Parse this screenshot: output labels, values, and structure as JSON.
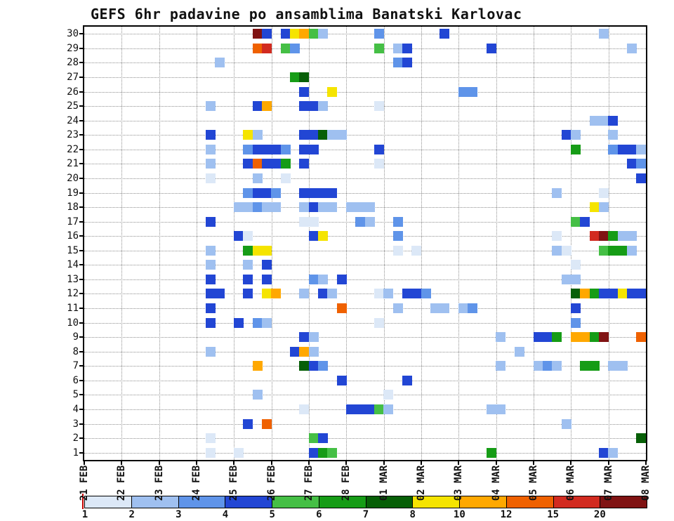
{
  "title": "GEFS 6hr padavine po ansamblima Banatski Karlovac",
  "chart_data": {
    "type": "heatmap",
    "title": "GEFS 6hr padavine po ansamblima Banatski Karlovac",
    "x_axis": {
      "tick_labels": [
        "21 FEB",
        "22 FEB",
        "23 FEB",
        "24 FEB",
        "25 FEB",
        "26 FEB",
        "27 FEB",
        "28 FEB",
        "01 MAR",
        "02 MAR",
        "03 MAR",
        "04 MAR",
        "05 MAR",
        "06 MAR",
        "07 MAR",
        "08 MAR"
      ],
      "total_steps": 60,
      "step_hours": 6
    },
    "y_axis": {
      "tick_values": [
        1,
        2,
        3,
        4,
        5,
        6,
        7,
        8,
        9,
        10,
        11,
        12,
        13,
        14,
        15,
        16,
        17,
        18,
        19,
        20,
        21,
        22,
        23,
        24,
        25,
        26,
        27,
        28,
        29,
        30
      ]
    },
    "legend": {
      "values": [
        "1",
        "2",
        "3",
        "4",
        "5",
        "6",
        "7",
        "8",
        "10",
        "12",
        "15",
        "20"
      ]
    },
    "palette": {
      "1": "#dce8f7",
      "2": "#9fc0f0",
      "3": "#5f94e9",
      "4": "#2246d4",
      "5": "#45bf45",
      "6": "#169c16",
      "7": "#075f07",
      "8": "#f5e400",
      "10": "#ffa800",
      "12": "#ef6100",
      "15": "#d22b20",
      "20": "#801313"
    },
    "cells": [
      [
        30,
        18,
        20
      ],
      [
        30,
        19,
        4
      ],
      [
        30,
        21,
        4
      ],
      [
        30,
        22,
        8
      ],
      [
        30,
        23,
        10
      ],
      [
        30,
        24,
        5
      ],
      [
        30,
        25,
        2
      ],
      [
        30,
        31,
        3
      ],
      [
        30,
        38,
        4
      ],
      [
        30,
        55,
        2
      ],
      [
        29,
        18,
        12
      ],
      [
        29,
        19,
        15
      ],
      [
        29,
        21,
        5
      ],
      [
        29,
        22,
        3
      ],
      [
        29,
        31,
        5
      ],
      [
        29,
        33,
        2
      ],
      [
        29,
        34,
        4
      ],
      [
        29,
        43,
        4
      ],
      [
        29,
        58,
        2
      ],
      [
        28,
        14,
        2
      ],
      [
        28,
        33,
        3
      ],
      [
        28,
        34,
        4
      ],
      [
        27,
        22,
        6
      ],
      [
        27,
        23,
        7
      ],
      [
        26,
        23,
        4
      ],
      [
        26,
        26,
        8
      ],
      [
        26,
        40,
        3
      ],
      [
        26,
        41,
        3
      ],
      [
        25,
        13,
        2
      ],
      [
        25,
        18,
        4
      ],
      [
        25,
        19,
        10
      ],
      [
        25,
        23,
        4
      ],
      [
        25,
        24,
        4
      ],
      [
        25,
        25,
        2
      ],
      [
        25,
        31,
        1
      ],
      [
        24,
        54,
        2
      ],
      [
        24,
        55,
        2
      ],
      [
        24,
        56,
        4
      ],
      [
        23,
        13,
        4
      ],
      [
        23,
        17,
        8
      ],
      [
        23,
        18,
        2
      ],
      [
        23,
        23,
        4
      ],
      [
        23,
        24,
        4
      ],
      [
        23,
        25,
        7
      ],
      [
        23,
        26,
        2
      ],
      [
        23,
        27,
        2
      ],
      [
        23,
        51,
        4
      ],
      [
        23,
        52,
        2
      ],
      [
        23,
        56,
        2
      ],
      [
        22,
        13,
        2
      ],
      [
        22,
        17,
        3
      ],
      [
        22,
        18,
        4
      ],
      [
        22,
        19,
        4
      ],
      [
        22,
        20,
        4
      ],
      [
        22,
        21,
        3
      ],
      [
        22,
        23,
        4
      ],
      [
        22,
        24,
        4
      ],
      [
        22,
        31,
        4
      ],
      [
        22,
        52,
        6
      ],
      [
        22,
        56,
        3
      ],
      [
        22,
        57,
        4
      ],
      [
        22,
        58,
        4
      ],
      [
        22,
        59,
        2
      ],
      [
        21,
        13,
        2
      ],
      [
        21,
        17,
        4
      ],
      [
        21,
        18,
        12
      ],
      [
        21,
        19,
        4
      ],
      [
        21,
        20,
        4
      ],
      [
        21,
        21,
        6
      ],
      [
        21,
        23,
        4
      ],
      [
        21,
        31,
        1
      ],
      [
        21,
        58,
        4
      ],
      [
        21,
        59,
        3
      ],
      [
        20,
        13,
        1
      ],
      [
        20,
        18,
        2
      ],
      [
        20,
        21,
        1
      ],
      [
        20,
        59,
        4
      ],
      [
        19,
        17,
        3
      ],
      [
        19,
        18,
        4
      ],
      [
        19,
        19,
        4
      ],
      [
        19,
        20,
        3
      ],
      [
        19,
        23,
        4
      ],
      [
        19,
        24,
        4
      ],
      [
        19,
        25,
        4
      ],
      [
        19,
        26,
        4
      ],
      [
        19,
        50,
        2
      ],
      [
        19,
        55,
        1
      ],
      [
        18,
        16,
        2
      ],
      [
        18,
        17,
        2
      ],
      [
        18,
        18,
        3
      ],
      [
        18,
        19,
        2
      ],
      [
        18,
        20,
        2
      ],
      [
        18,
        23,
        2
      ],
      [
        18,
        24,
        4
      ],
      [
        18,
        25,
        2
      ],
      [
        18,
        26,
        2
      ],
      [
        18,
        28,
        2
      ],
      [
        18,
        29,
        2
      ],
      [
        18,
        30,
        2
      ],
      [
        18,
        54,
        8
      ],
      [
        18,
        55,
        2
      ],
      [
        17,
        13,
        4
      ],
      [
        17,
        23,
        1
      ],
      [
        17,
        24,
        1
      ],
      [
        17,
        29,
        3
      ],
      [
        17,
        30,
        2
      ],
      [
        17,
        33,
        3
      ],
      [
        17,
        52,
        5
      ],
      [
        17,
        53,
        4
      ],
      [
        16,
        16,
        4
      ],
      [
        16,
        17,
        1
      ],
      [
        16,
        24,
        4
      ],
      [
        16,
        25,
        8
      ],
      [
        16,
        33,
        3
      ],
      [
        16,
        50,
        1
      ],
      [
        16,
        54,
        15
      ],
      [
        16,
        55,
        20
      ],
      [
        16,
        56,
        6
      ],
      [
        16,
        57,
        2
      ],
      [
        16,
        58,
        2
      ],
      [
        15,
        13,
        2
      ],
      [
        15,
        17,
        6
      ],
      [
        15,
        18,
        8
      ],
      [
        15,
        19,
        8
      ],
      [
        15,
        33,
        1
      ],
      [
        15,
        35,
        1
      ],
      [
        15,
        50,
        2
      ],
      [
        15,
        51,
        1
      ],
      [
        15,
        55,
        5
      ],
      [
        15,
        56,
        6
      ],
      [
        15,
        57,
        6
      ],
      [
        15,
        58,
        2
      ],
      [
        14,
        13,
        2
      ],
      [
        14,
        17,
        2
      ],
      [
        14,
        19,
        4
      ],
      [
        14,
        52,
        1
      ],
      [
        13,
        13,
        4
      ],
      [
        13,
        17,
        4
      ],
      [
        13,
        19,
        4
      ],
      [
        13,
        24,
        3
      ],
      [
        13,
        25,
        2
      ],
      [
        13,
        27,
        4
      ],
      [
        13,
        51,
        2
      ],
      [
        13,
        52,
        2
      ],
      [
        12,
        13,
        4
      ],
      [
        12,
        14,
        4
      ],
      [
        12,
        17,
        4
      ],
      [
        12,
        19,
        8
      ],
      [
        12,
        20,
        10
      ],
      [
        12,
        23,
        2
      ],
      [
        12,
        25,
        4
      ],
      [
        12,
        26,
        2
      ],
      [
        12,
        31,
        1
      ],
      [
        12,
        32,
        2
      ],
      [
        12,
        34,
        4
      ],
      [
        12,
        35,
        4
      ],
      [
        12,
        36,
        3
      ],
      [
        12,
        52,
        7
      ],
      [
        12,
        53,
        10
      ],
      [
        12,
        54,
        6
      ],
      [
        12,
        55,
        4
      ],
      [
        12,
        56,
        4
      ],
      [
        12,
        57,
        8
      ],
      [
        12,
        58,
        4
      ],
      [
        12,
        59,
        4
      ],
      [
        11,
        13,
        4
      ],
      [
        11,
        27,
        12
      ],
      [
        11,
        33,
        2
      ],
      [
        11,
        37,
        2
      ],
      [
        11,
        38,
        2
      ],
      [
        11,
        40,
        2
      ],
      [
        11,
        41,
        3
      ],
      [
        11,
        52,
        4
      ],
      [
        10,
        13,
        4
      ],
      [
        10,
        16,
        4
      ],
      [
        10,
        18,
        3
      ],
      [
        10,
        19,
        2
      ],
      [
        10,
        31,
        1
      ],
      [
        10,
        52,
        3
      ],
      [
        9,
        23,
        4
      ],
      [
        9,
        24,
        2
      ],
      [
        9,
        44,
        2
      ],
      [
        9,
        48,
        4
      ],
      [
        9,
        49,
        4
      ],
      [
        9,
        50,
        6
      ],
      [
        9,
        52,
        10
      ],
      [
        9,
        53,
        10
      ],
      [
        9,
        54,
        6
      ],
      [
        9,
        55,
        20
      ],
      [
        9,
        59,
        12
      ],
      [
        8,
        13,
        2
      ],
      [
        8,
        22,
        4
      ],
      [
        8,
        23,
        10
      ],
      [
        8,
        24,
        2
      ],
      [
        8,
        46,
        2
      ],
      [
        7,
        18,
        10
      ],
      [
        7,
        23,
        7
      ],
      [
        7,
        24,
        4
      ],
      [
        7,
        25,
        3
      ],
      [
        7,
        44,
        2
      ],
      [
        7,
        48,
        2
      ],
      [
        7,
        49,
        3
      ],
      [
        7,
        50,
        2
      ],
      [
        7,
        53,
        6
      ],
      [
        7,
        54,
        6
      ],
      [
        7,
        56,
        2
      ],
      [
        7,
        57,
        2
      ],
      [
        6,
        27,
        4
      ],
      [
        6,
        34,
        4
      ],
      [
        5,
        18,
        2
      ],
      [
        5,
        32,
        1
      ],
      [
        4,
        23,
        1
      ],
      [
        4,
        28,
        4
      ],
      [
        4,
        29,
        4
      ],
      [
        4,
        30,
        4
      ],
      [
        4,
        31,
        5
      ],
      [
        4,
        32,
        2
      ],
      [
        4,
        43,
        2
      ],
      [
        4,
        44,
        2
      ],
      [
        3,
        17,
        4
      ],
      [
        3,
        19,
        12
      ],
      [
        3,
        51,
        2
      ],
      [
        2,
        13,
        1
      ],
      [
        2,
        24,
        5
      ],
      [
        2,
        25,
        4
      ],
      [
        2,
        59,
        7
      ],
      [
        1,
        13,
        1
      ],
      [
        1,
        16,
        1
      ],
      [
        1,
        24,
        4
      ],
      [
        1,
        25,
        6
      ],
      [
        1,
        26,
        5
      ],
      [
        1,
        43,
        6
      ],
      [
        1,
        55,
        4
      ],
      [
        1,
        56,
        2
      ]
    ]
  }
}
